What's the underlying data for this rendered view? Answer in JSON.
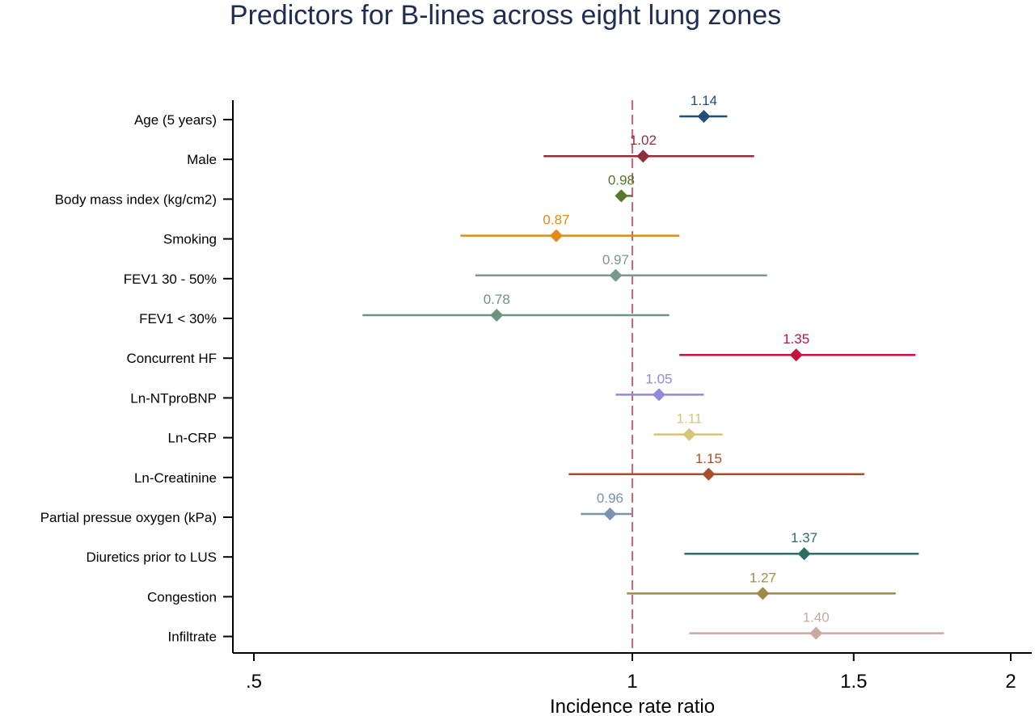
{
  "chart_data": {
    "type": "forest",
    "title": "Predictors for B-lines across eight lung zones",
    "xlabel": "Incidence rate ratio",
    "xlim": [
      0.5,
      2
    ],
    "x_scale": "log",
    "xticks": [
      {
        "value": 0.5,
        "label": ".5"
      },
      {
        "value": 1,
        "label": "1"
      },
      {
        "value": 1.5,
        "label": "1.5"
      },
      {
        "value": 2,
        "label": "2"
      }
    ],
    "reference_line": 1,
    "rows": [
      {
        "label": "Age (5 years)",
        "estimate": 1.14,
        "text": "1.14",
        "ci_low": 1.09,
        "ci_high": 1.19,
        "color": "#1f4e79"
      },
      {
        "label": "Male",
        "estimate": 1.02,
        "text": "1.02",
        "ci_low": 0.85,
        "ci_high": 1.25,
        "color": "#8e2f3b"
      },
      {
        "label": "Body mass index (kg/cm2)",
        "estimate": 0.98,
        "text": "0.98",
        "ci_low": 0.97,
        "ci_high": 1.0,
        "color": "#55782a"
      },
      {
        "label": "Smoking",
        "estimate": 0.87,
        "text": "0.87",
        "ci_low": 0.73,
        "ci_high": 1.09,
        "color": "#e3891a"
      },
      {
        "label": "FEV1 30 - 50%",
        "estimate": 0.97,
        "text": "0.97",
        "ci_low": 0.75,
        "ci_high": 1.28,
        "color": "#7b9890"
      },
      {
        "label": "FEV1 < 30%",
        "estimate": 0.78,
        "text": "0.78",
        "ci_low": 0.61,
        "ci_high": 1.07,
        "color": "#6c9480"
      },
      {
        "label": "Concurrent HF",
        "estimate": 1.35,
        "text": "1.35",
        "ci_low": 1.09,
        "ci_high": 1.68,
        "color": "#c2143c"
      },
      {
        "label": "Ln-NTproBNP",
        "estimate": 1.05,
        "text": "1.05",
        "ci_low": 0.97,
        "ci_high": 1.14,
        "color": "#8f89dd"
      },
      {
        "label": "Ln-CRP",
        "estimate": 1.11,
        "text": "1.11",
        "ci_low": 1.04,
        "ci_high": 1.18,
        "color": "#d6c478"
      },
      {
        "label": "Ln-Creatinine",
        "estimate": 1.15,
        "text": "1.15",
        "ci_low": 0.89,
        "ci_high": 1.53,
        "color": "#a74e2b"
      },
      {
        "label": "Partial pressue oxygen (kPa)",
        "estimate": 0.96,
        "text": "0.96",
        "ci_low": 0.91,
        "ci_high": 1.0,
        "color": "#7793ad"
      },
      {
        "label": "Diuretics prior to LUS",
        "estimate": 1.37,
        "text": "1.37",
        "ci_low": 1.1,
        "ci_high": 1.69,
        "color": "#2c6e66"
      },
      {
        "label": "Congestion",
        "estimate": 1.27,
        "text": "1.27",
        "ci_low": 0.99,
        "ci_high": 1.62,
        "color": "#9e8a44"
      },
      {
        "label": "Infiltrate",
        "estimate": 1.4,
        "text": "1.40",
        "ci_low": 1.11,
        "ci_high": 1.77,
        "color": "#c9a9a1"
      }
    ],
    "grid": false,
    "legend": "none"
  }
}
